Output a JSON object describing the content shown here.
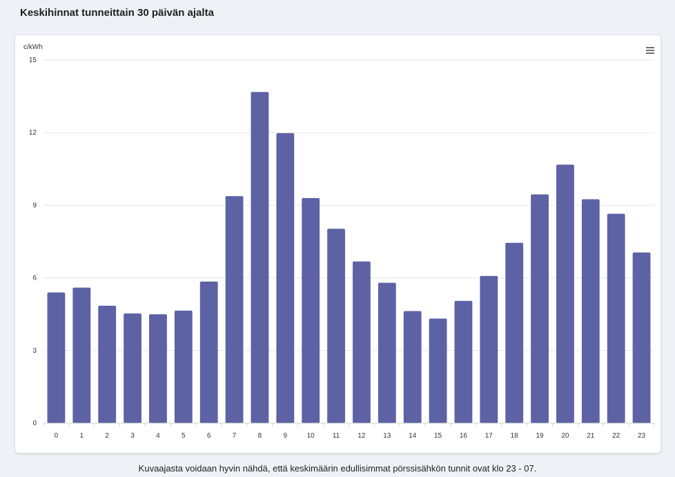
{
  "page": {
    "title": "Keskihinnat tunneittain 30 päivän ajalta",
    "caption": "Kuvaajasta voidaan hyvin nähdä, että keskimäärin edullisimmat pörssisähkön tunnit ovat klo 23 - 07.",
    "menu_icon": "hamburger-menu-icon"
  },
  "chart_data": {
    "type": "bar",
    "title": "",
    "xlabel": "",
    "ylabel": "c/kWh",
    "categories": [
      "0",
      "1",
      "2",
      "3",
      "4",
      "5",
      "6",
      "7",
      "8",
      "9",
      "10",
      "11",
      "12",
      "13",
      "14",
      "15",
      "16",
      "17",
      "18",
      "19",
      "20",
      "21",
      "22",
      "23"
    ],
    "values": [
      5.4,
      5.6,
      4.85,
      4.53,
      4.5,
      4.65,
      5.85,
      9.38,
      13.68,
      11.98,
      9.3,
      8.03,
      6.68,
      5.8,
      4.63,
      4.32,
      5.05,
      6.08,
      7.45,
      9.45,
      10.68,
      9.25,
      8.65,
      7.05
    ],
    "ylim": [
      0,
      15
    ],
    "yticks": [
      0,
      3,
      6,
      9,
      12,
      15
    ],
    "grid": true,
    "legend": "none",
    "bar_color": "#5c62a4"
  }
}
